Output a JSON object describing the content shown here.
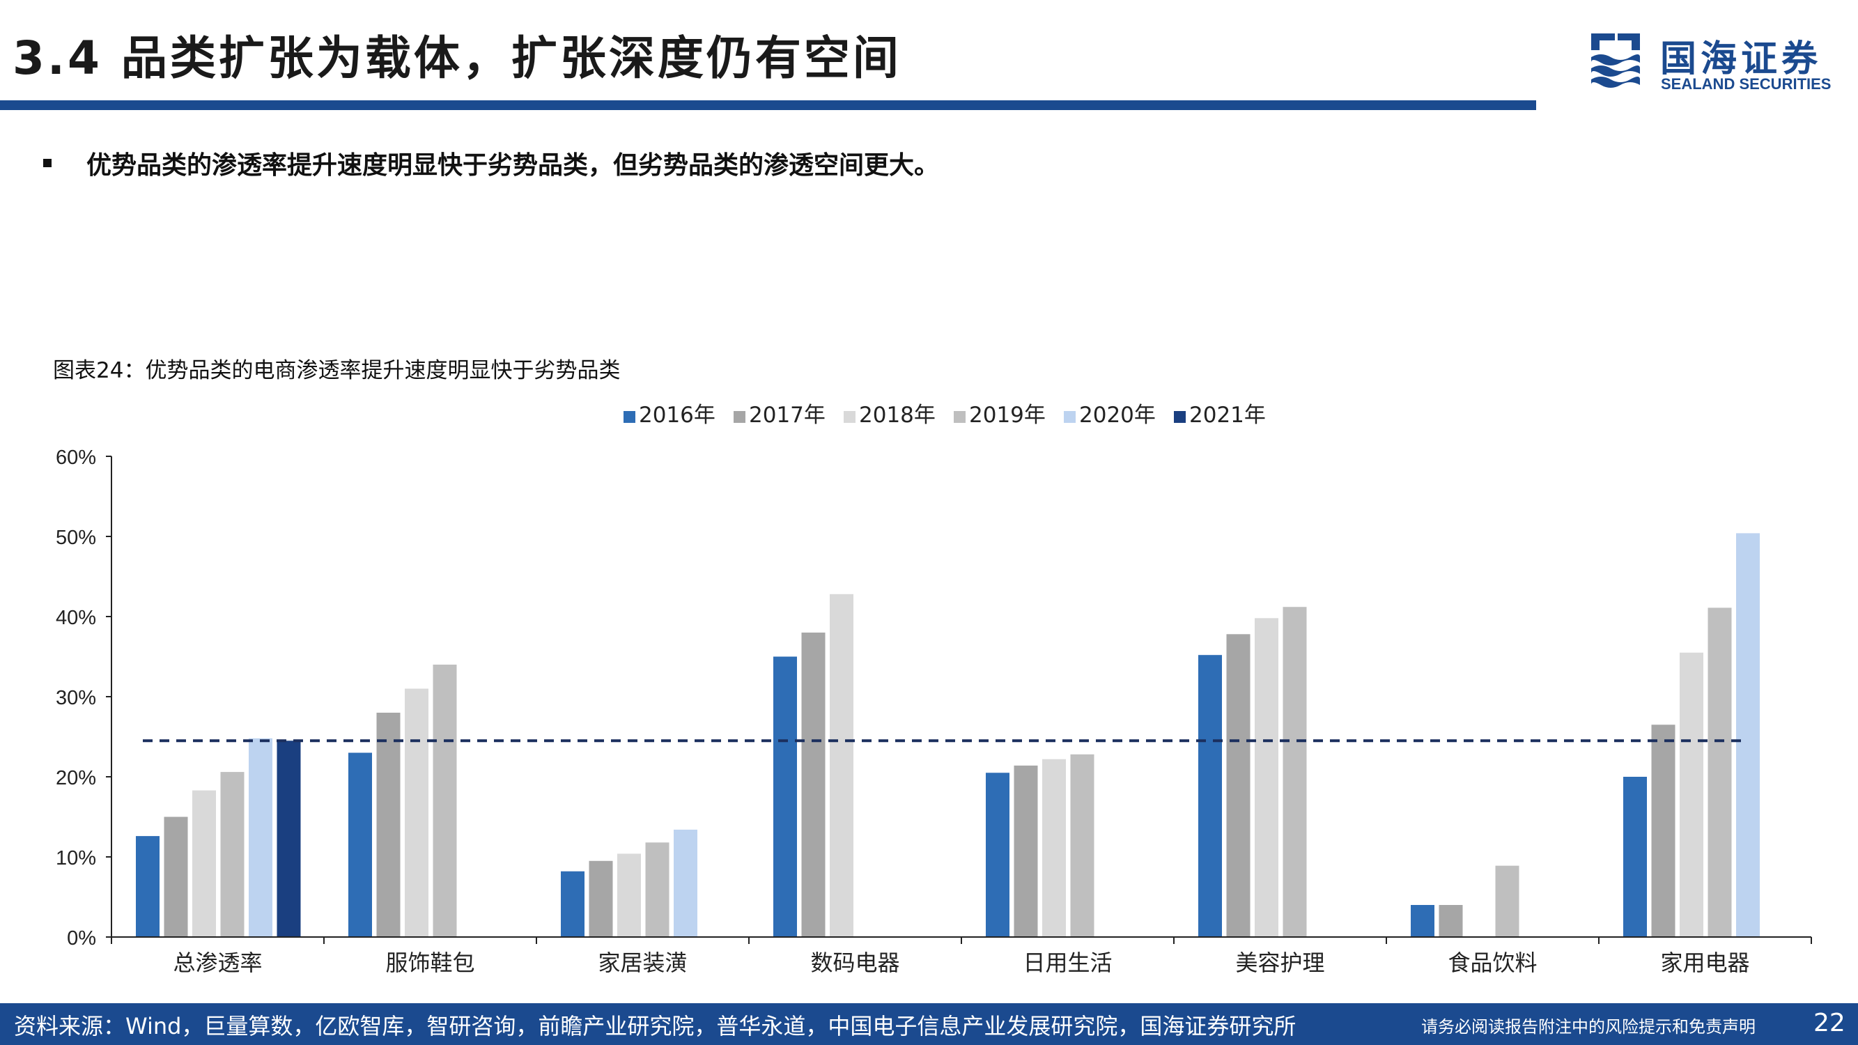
{
  "header": {
    "title": "3.4 品类扩张为载体，扩张深度仍有空间",
    "logo_cn": "国海证券",
    "logo_en": "SEALAND SECURITIES",
    "accent_color": "#1b4a8f"
  },
  "bullet": {
    "text": "优势品类的渗透率提升速度明显快于劣势品类，但劣势品类的渗透空间更大。"
  },
  "figure_caption": "图表24：优势品类的电商渗透率提升速度明显快于劣势品类",
  "chart_data": {
    "type": "bar",
    "categories": [
      "总渗透率",
      "服饰鞋包",
      "家居装潢",
      "数码电器",
      "日用生活",
      "美容护理",
      "食品饮料",
      "家用电器"
    ],
    "series": [
      {
        "name": "2016年",
        "color": "#2e6db5",
        "values": [
          12.6,
          23.0,
          8.2,
          35.0,
          20.5,
          35.2,
          4.0,
          20.0
        ]
      },
      {
        "name": "2017年",
        "color": "#a6a6a6",
        "values": [
          15.0,
          28.0,
          9.5,
          38.0,
          21.4,
          37.8,
          4.0,
          26.5
        ]
      },
      {
        "name": "2018年",
        "color": "#d9d9d9",
        "values": [
          18.3,
          31.0,
          10.4,
          42.8,
          22.2,
          39.8,
          null,
          35.5
        ]
      },
      {
        "name": "2019年",
        "color": "#bfbfbf",
        "values": [
          20.6,
          34.0,
          11.8,
          null,
          22.8,
          41.2,
          8.9,
          41.1
        ]
      },
      {
        "name": "2020年",
        "color": "#bdd3f0",
        "values": [
          24.8,
          null,
          13.4,
          null,
          null,
          null,
          null,
          50.4
        ]
      },
      {
        "name": "2021年",
        "color": "#1a3f80",
        "values": [
          24.5,
          null,
          null,
          null,
          null,
          null,
          null,
          null
        ]
      }
    ],
    "reference_line": {
      "value": 24.5,
      "style": "dashed",
      "color": "#1b2f5e"
    },
    "ylim": [
      0,
      60
    ],
    "yticks": [
      0,
      10,
      20,
      30,
      40,
      50,
      60
    ],
    "ytick_labels": [
      "0%",
      "10%",
      "20%",
      "30%",
      "40%",
      "50%",
      "60%"
    ],
    "legend_position": "top-center",
    "grid": false,
    "title": "",
    "xlabel": "",
    "ylabel": ""
  },
  "footer": {
    "source": "资料来源：Wind，巨量算数，亿欧智库，智研咨询，前瞻产业研究院，普华永道，中国电子信息产业发展研究院，国海证券研究所",
    "disclaimer": "请务必阅读报告附注中的风险提示和免责声明",
    "page": "22"
  }
}
